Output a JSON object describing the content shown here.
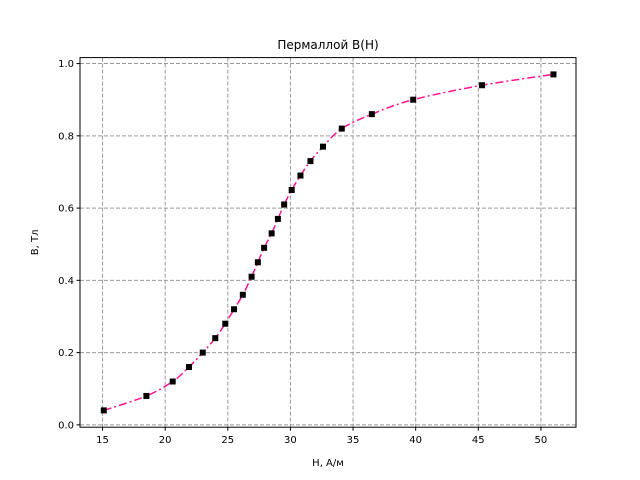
{
  "chart_data": {
    "type": "line",
    "title": "Пермаллой B(H)",
    "xlabel": "H, А/м",
    "ylabel": "B, Тл",
    "xlim": [
      13.2,
      52.8
    ],
    "ylim": [
      -0.0065,
      1.0165
    ],
    "xticks": [
      15,
      20,
      25,
      30,
      35,
      40,
      45,
      50
    ],
    "yticks": [
      0.0,
      0.2,
      0.4,
      0.6,
      0.8,
      1.0
    ],
    "xtick_labels": [
      "15",
      "20",
      "25",
      "30",
      "35",
      "40",
      "45",
      "50"
    ],
    "ytick_labels": [
      "0.0",
      "0.2",
      "0.4",
      "0.6",
      "0.8",
      "1.0"
    ],
    "grid": true,
    "series": [
      {
        "line_color": "#ff1493",
        "line_style": "dash-dot",
        "marker": "square",
        "marker_color": "#000000",
        "x": [
          15.1,
          18.5,
          20.6,
          21.9,
          23.0,
          24.0,
          24.8,
          25.5,
          26.2,
          26.9,
          27.4,
          27.9,
          28.5,
          29.0,
          29.5,
          30.1,
          30.8,
          31.6,
          32.6,
          34.1,
          36.5,
          39.8,
          45.3,
          51.0
        ],
        "y": [
          0.04,
          0.08,
          0.12,
          0.16,
          0.2,
          0.24,
          0.28,
          0.32,
          0.36,
          0.41,
          0.45,
          0.49,
          0.53,
          0.57,
          0.61,
          0.65,
          0.69,
          0.73,
          0.77,
          0.82,
          0.86,
          0.9,
          0.94,
          0.97
        ]
      }
    ]
  }
}
